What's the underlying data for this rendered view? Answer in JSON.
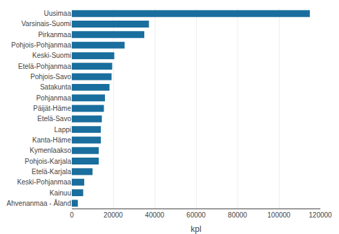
{
  "chart_data": {
    "type": "bar",
    "orientation": "horizontal",
    "categories": [
      "Uusimaa",
      "Varsinais-Suomi",
      "Pirkanmaa",
      "Pohjois-Pohjanmaa",
      "Keski-Suomi",
      "Etelä-Pohjanmaa",
      "Pohjois-Savo",
      "Satakunta",
      "Pohjanmaa",
      "Päijät-Häme",
      "Etelä-Savo",
      "Lappi",
      "Kanta-Häme",
      "Kymenlaakso",
      "Pohjois-Karjala",
      "Etelä-Karjala",
      "Keski-Pohjanmaa",
      "Kainuu",
      "Ahvenanmaa - Åland"
    ],
    "values": [
      114929,
      37234,
      35000,
      25500,
      20500,
      19500,
      19200,
      18200,
      16000,
      15500,
      14500,
      14000,
      14000,
      13000,
      13000,
      10000,
      6000,
      5500,
      2913
    ],
    "color": "#1a6e9e",
    "xlabel": "kpl",
    "xlim": [
      0,
      120000
    ],
    "xticks": [
      0,
      20000,
      40000,
      60000,
      80000,
      100000,
      120000
    ],
    "grid": true
  }
}
